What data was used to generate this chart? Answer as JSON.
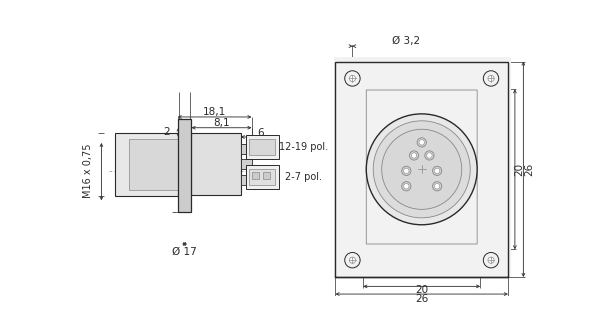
{
  "bg_color": "#ffffff",
  "lc": "#2a2a2a",
  "dc": "#2a2a2a",
  "gc": "#888888",
  "lgc": "#bbbbbb",
  "fs": 7.0,
  "annotations": {
    "dim_181": "18,1",
    "dim_81": "8,1",
    "dim_6": "6",
    "dim_2": "2",
    "dim_17": "Ø 17",
    "dim_m16": "M16 x 0,75",
    "dim_26_top": "26",
    "dim_20_top": "20",
    "dim_26_right": "26",
    "dim_20_right": "20",
    "dim_32": "Ø 3,2",
    "label_27pol": "2-7 pol.",
    "label_1219pol": "12-19 pol."
  }
}
